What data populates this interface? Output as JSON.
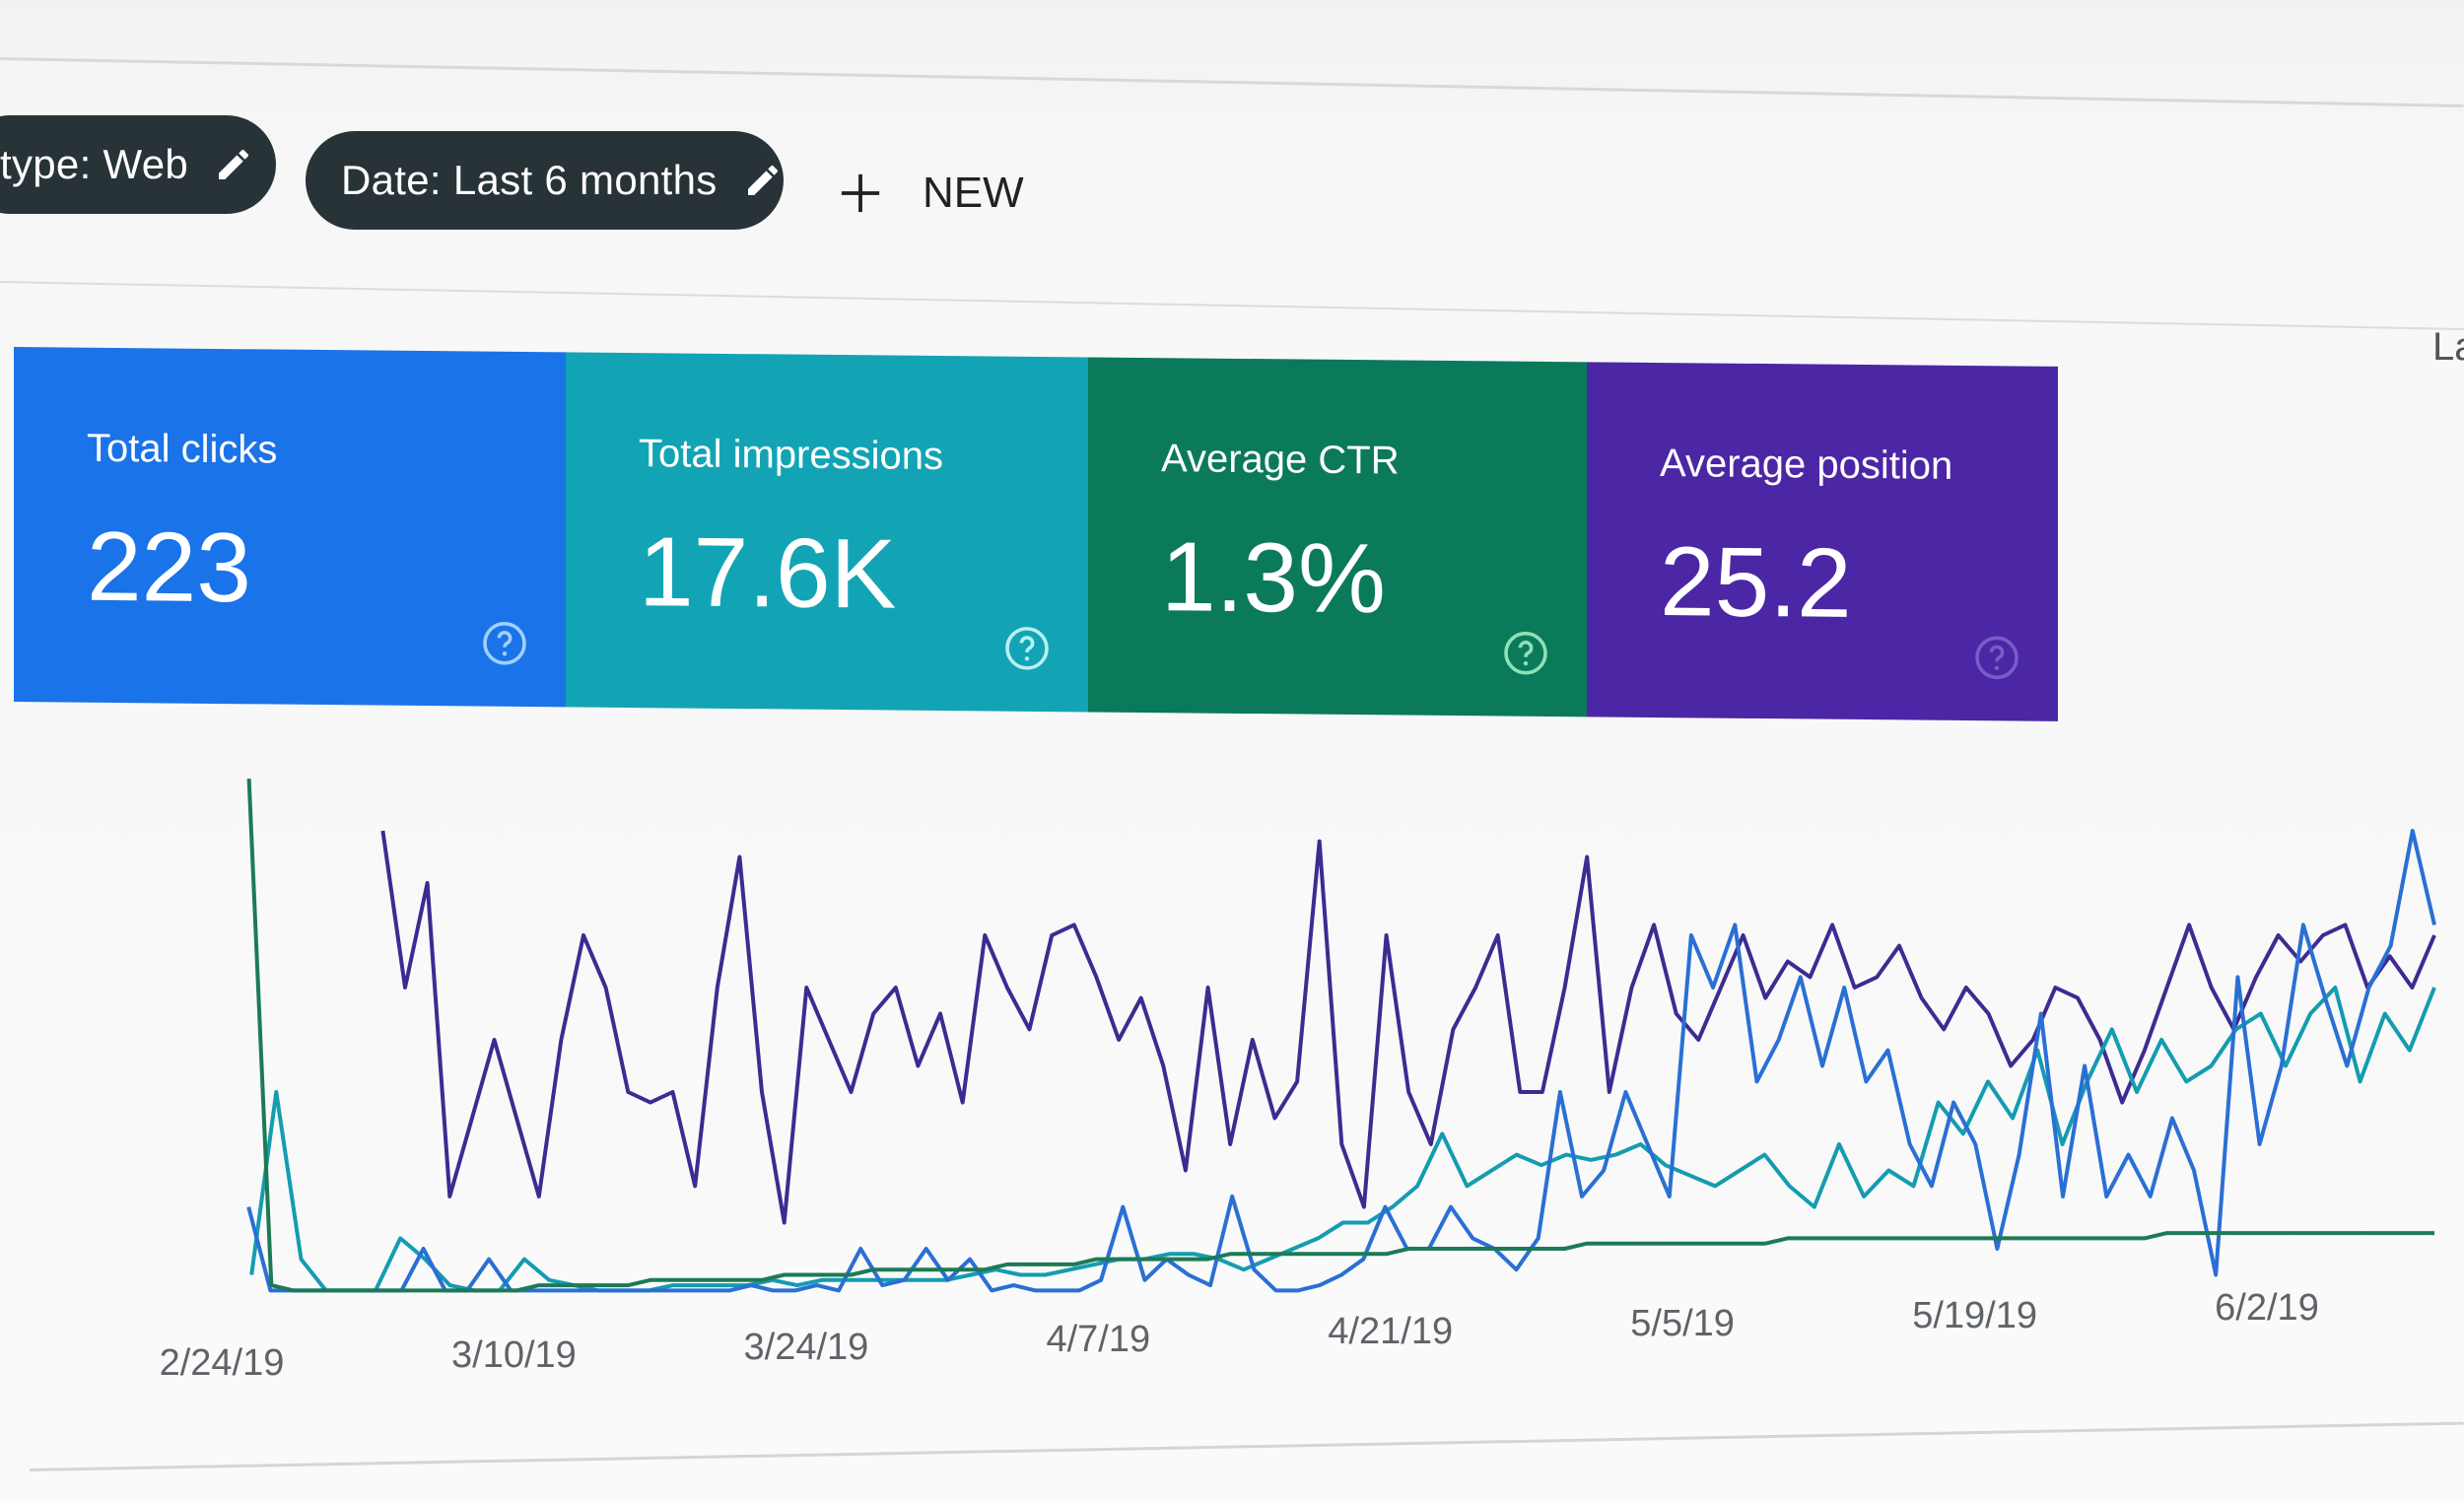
{
  "filters": {
    "type_chip_label": "type: Web",
    "date_chip_label": "Date: Last 6 months",
    "new_label": "NEW",
    "right_cutoff_text": "La"
  },
  "metrics": [
    {
      "title": "Total clicks",
      "value": "223",
      "color": "#1a73e8"
    },
    {
      "title": "Total impressions",
      "value": "17.6K",
      "color": "#12a4b4"
    },
    {
      "title": "Average CTR",
      "value": "1.3%",
      "color": "#0a7a5a"
    },
    {
      "title": "Average position",
      "value": "25.2",
      "color": "#4b26a5"
    }
  ],
  "chart_data": {
    "type": "line",
    "title": "",
    "xlabel": "",
    "ylabel": "",
    "x_tick_labels": [
      "2/24/19",
      "3/10/19",
      "3/24/19",
      "4/7/19",
      "4/21/19",
      "5/5/19",
      "5/19/19",
      "6/2/19"
    ],
    "ylim": [
      0,
      100
    ],
    "grid": false,
    "series": [
      {
        "name": "Average position",
        "color": "#3d2b91",
        "values": [
          null,
          null,
          null,
          null,
          null,
          null,
          null,
          90,
          60,
          80,
          20,
          35,
          50,
          35,
          20,
          50,
          70,
          60,
          40,
          38,
          40,
          22,
          60,
          85,
          40,
          15,
          60,
          50,
          40,
          55,
          60,
          45,
          55,
          38,
          70,
          60,
          52,
          70,
          72,
          62,
          50,
          58,
          45,
          25,
          60,
          30,
          50,
          35,
          42,
          88,
          30,
          18,
          70,
          40,
          30,
          52,
          60,
          70,
          40,
          40,
          60,
          85,
          40,
          60,
          72,
          55,
          50,
          60,
          70,
          58,
          65,
          62,
          72,
          60,
          62,
          68,
          58,
          52,
          60,
          55,
          45,
          50,
          60,
          58,
          50,
          38,
          48,
          60,
          72,
          60,
          52,
          62,
          70,
          65,
          70,
          72,
          60,
          66,
          60,
          70
        ]
      },
      {
        "name": "Total impressions",
        "color": "#149cb0",
        "values": [
          null,
          5,
          40,
          8,
          2,
          2,
          2,
          12,
          8,
          3,
          2,
          2,
          8,
          4,
          3,
          2,
          2,
          2,
          3,
          3,
          3,
          3,
          4,
          3,
          4,
          4,
          4,
          4,
          4,
          4,
          5,
          6,
          5,
          5,
          6,
          7,
          8,
          8,
          9,
          9,
          8,
          6,
          8,
          10,
          12,
          15,
          15,
          18,
          22,
          32,
          22,
          25,
          28,
          26,
          28,
          27,
          28,
          30,
          26,
          24,
          22,
          25,
          28,
          22,
          18,
          30,
          20,
          25,
          22,
          38,
          32,
          42,
          35,
          48,
          30,
          42,
          52,
          40,
          50,
          42,
          45,
          52,
          55,
          45,
          55,
          60,
          42,
          55,
          48,
          60
        ]
      },
      {
        "name": "Total clicks",
        "color": "#2a6fd4",
        "values": [
          null,
          18,
          2,
          2,
          2,
          2,
          2,
          2,
          2,
          10,
          2,
          2,
          8,
          2,
          2,
          2,
          2,
          2,
          2,
          2,
          2,
          2,
          2,
          2,
          3,
          2,
          2,
          3,
          2,
          10,
          3,
          4,
          10,
          4,
          8,
          2,
          3,
          2,
          2,
          2,
          4,
          18,
          4,
          8,
          5,
          3,
          20,
          6,
          2,
          2,
          3,
          5,
          8,
          18,
          10,
          10,
          18,
          12,
          10,
          6,
          12,
          40,
          20,
          25,
          40,
          30,
          20,
          70,
          60,
          72,
          42,
          50,
          62,
          45,
          60,
          42,
          48,
          30,
          22,
          38,
          30,
          10,
          28,
          55,
          20,
          45,
          20,
          28,
          20,
          35,
          25,
          5,
          62,
          30,
          45,
          72,
          58,
          45,
          60,
          68,
          90,
          72
        ]
      },
      {
        "name": "Average CTR",
        "color": "#1d7a55",
        "values": [
          null,
          100,
          3,
          2,
          2,
          2,
          2,
          2,
          2,
          2,
          2,
          2,
          2,
          2,
          3,
          3,
          3,
          3,
          3,
          4,
          4,
          4,
          4,
          4,
          4,
          5,
          5,
          5,
          5,
          6,
          6,
          6,
          6,
          6,
          6,
          7,
          7,
          7,
          7,
          8,
          8,
          8,
          8,
          8,
          8,
          9,
          9,
          9,
          9,
          9,
          9,
          9,
          9,
          10,
          10,
          10,
          10,
          10,
          10,
          10,
          10,
          11,
          11,
          11,
          11,
          11,
          11,
          11,
          11,
          11,
          12,
          12,
          12,
          12,
          12,
          12,
          12,
          12,
          12,
          12,
          12,
          12,
          12,
          12,
          12,
          12,
          12,
          13,
          13,
          13,
          13,
          13,
          13,
          13,
          13,
          13,
          13,
          13,
          13,
          13
        ]
      }
    ]
  }
}
